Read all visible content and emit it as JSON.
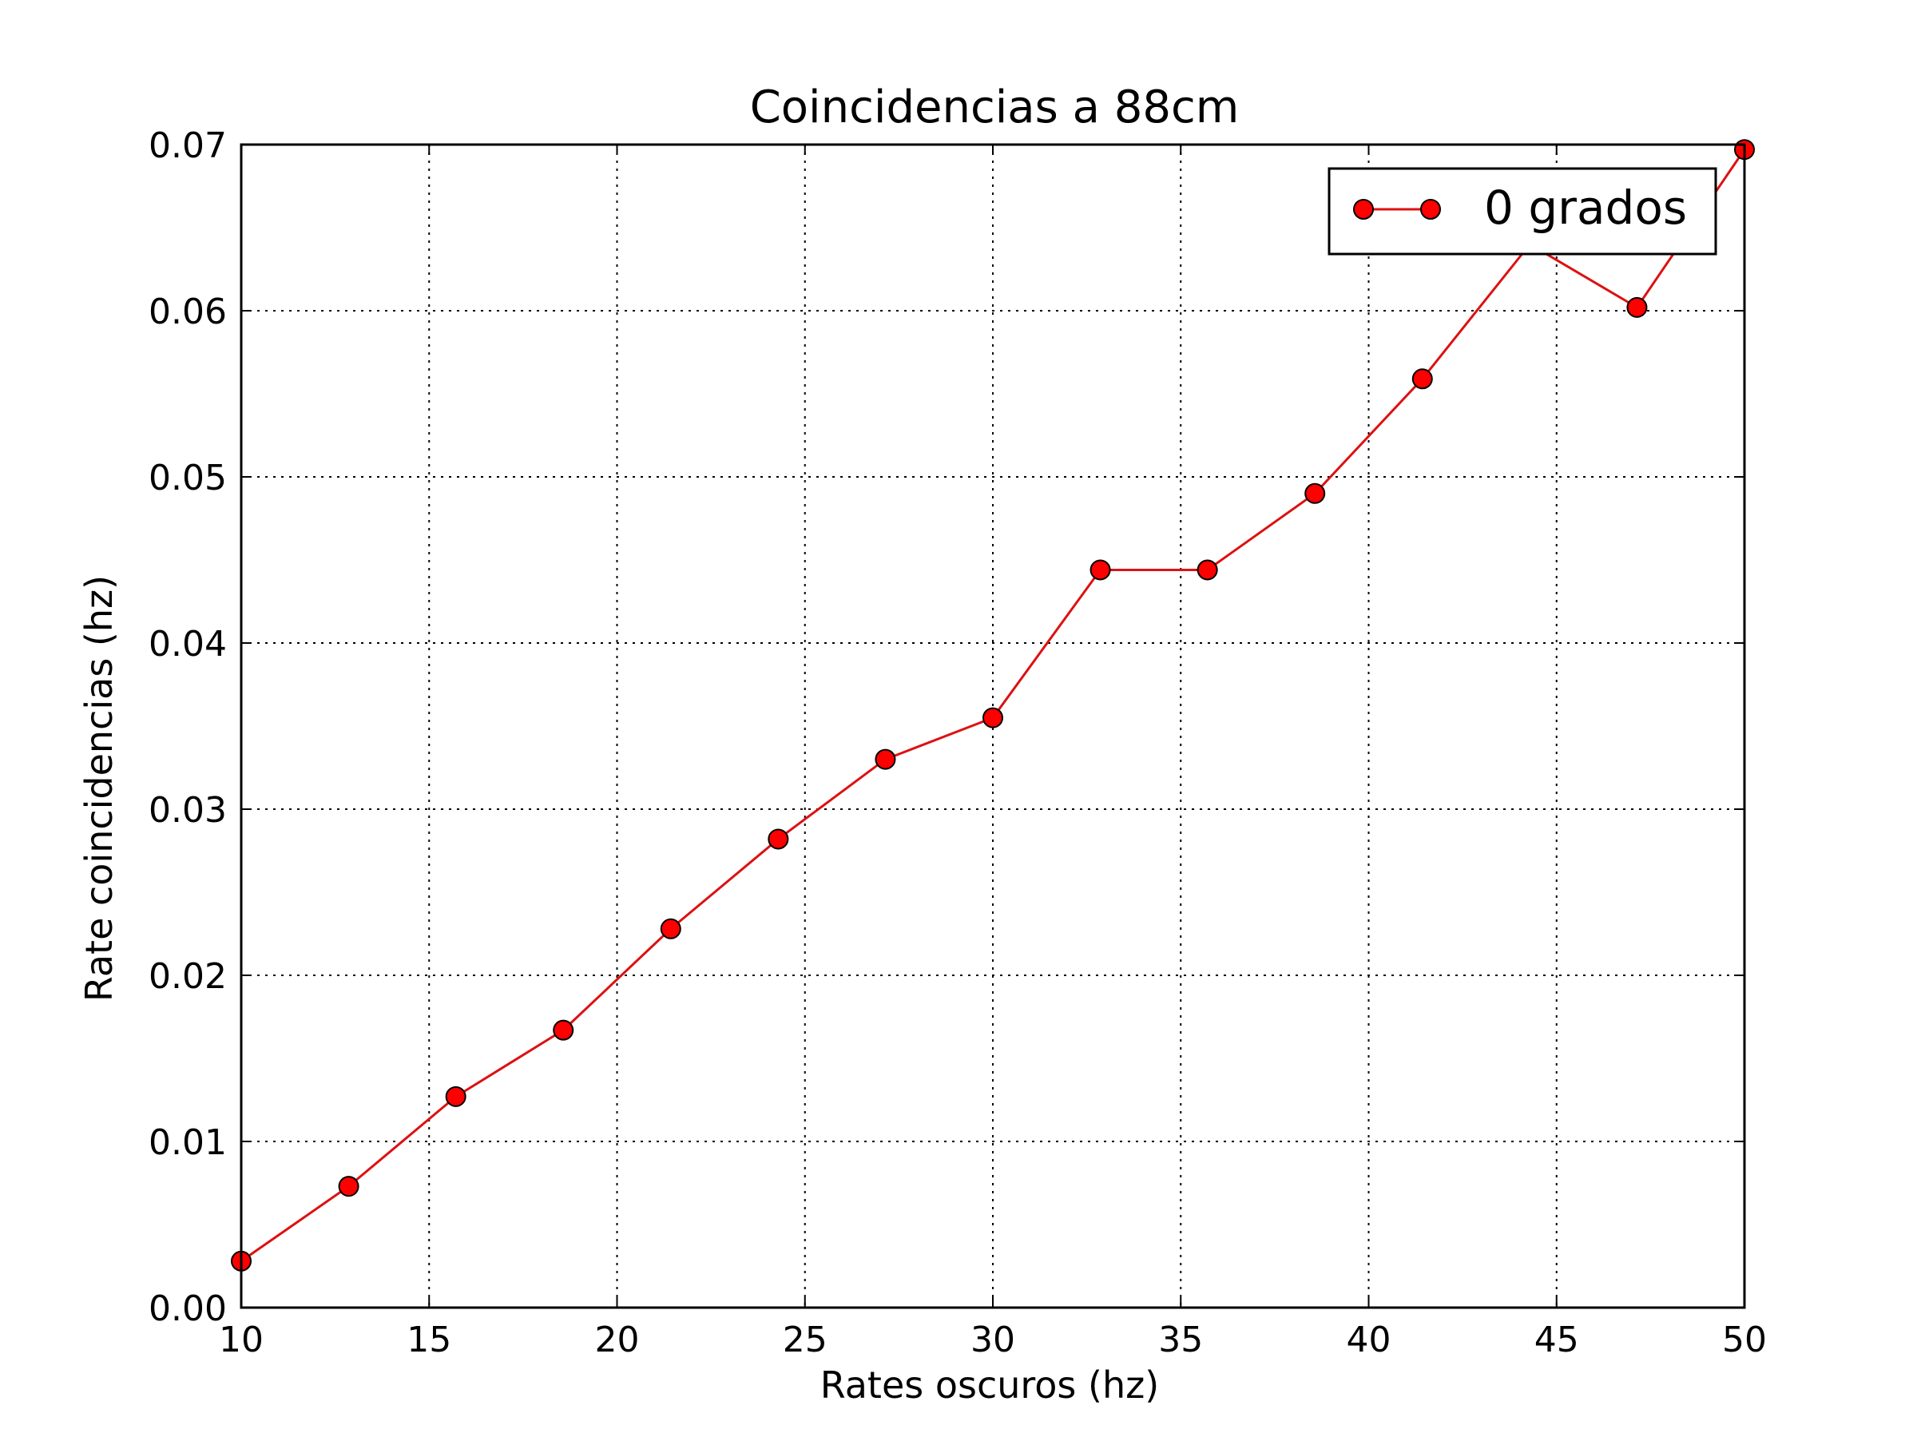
{
  "chart_data": {
    "type": "line",
    "title": "Coincidencias a 88cm",
    "xlabel": "Rates oscuros (hz)",
    "ylabel": "Rate coincidencias (hz)",
    "xlim": [
      10,
      50
    ],
    "ylim": [
      0.0,
      0.07
    ],
    "xticks": [
      10,
      15,
      20,
      25,
      30,
      35,
      40,
      45,
      50
    ],
    "xtick_labels": [
      "10",
      "15",
      "20",
      "25",
      "30",
      "35",
      "40",
      "45",
      "50"
    ],
    "yticks": [
      0.0,
      0.01,
      0.02,
      0.03,
      0.04,
      0.05,
      0.06,
      0.07
    ],
    "ytick_labels": [
      "0.00",
      "0.01",
      "0.02",
      "0.03",
      "0.04",
      "0.05",
      "0.06",
      "0.07"
    ],
    "grid": true,
    "legend_position": "top-right",
    "series": [
      {
        "name": "0 grados",
        "color": "#ff0000",
        "line_color": "#dd1111",
        "marker": "circle",
        "x": [
          10.0,
          12.86,
          15.71,
          18.57,
          21.43,
          24.29,
          27.14,
          30.0,
          32.86,
          35.71,
          38.57,
          41.43,
          44.29,
          47.14,
          50.0
        ],
        "y": [
          0.0028,
          0.0073,
          0.0127,
          0.0167,
          0.0228,
          0.0282,
          0.033,
          0.0355,
          0.0444,
          0.0444,
          0.049,
          0.0559,
          0.064,
          0.0602,
          0.0697
        ]
      }
    ]
  }
}
